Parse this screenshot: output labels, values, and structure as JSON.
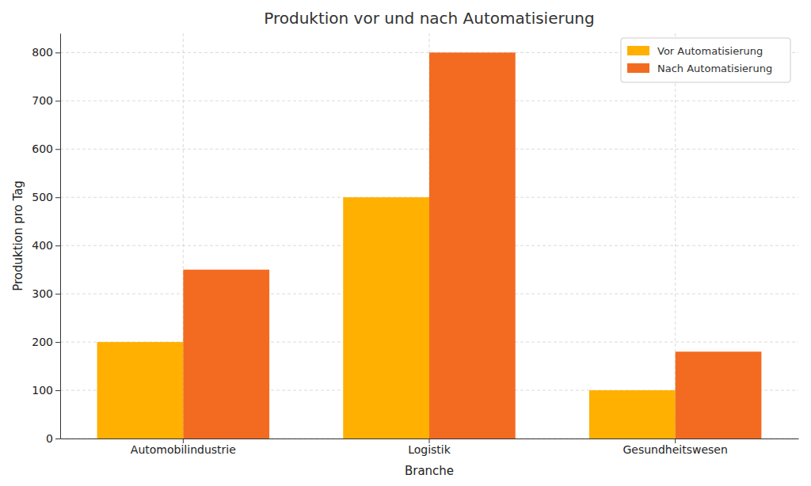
{
  "chart_data": {
    "type": "bar",
    "title": "Produktion vor und nach Automatisierung",
    "x_label": "Branche",
    "y_label": "Produktion pro Tag",
    "categories": [
      "Automobilindustrie",
      "Logistik",
      "Gesundheitswesen"
    ],
    "series": [
      {
        "name": "Vor Automatisierung",
        "color": "#ffb000",
        "values": [
          200,
          500,
          100
        ]
      },
      {
        "name": "Nach Automatisierung",
        "color": "#f26b21",
        "values": [
          350,
          800,
          180
        ]
      }
    ],
    "ylim": [
      0,
      840
    ],
    "yticks": [
      0,
      100,
      200,
      300,
      400,
      500,
      600,
      700,
      800
    ],
    "grid": true,
    "legend": "upper right"
  }
}
